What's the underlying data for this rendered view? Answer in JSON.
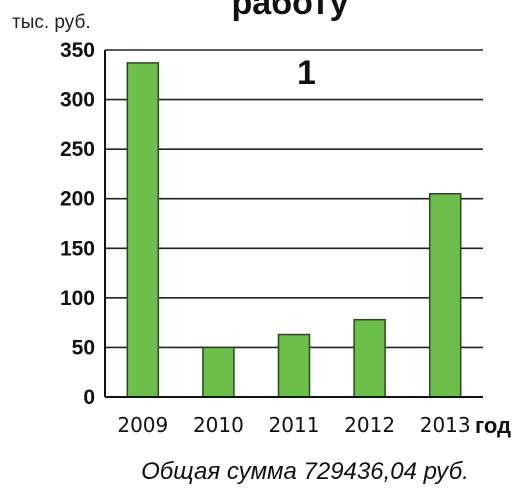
{
  "chart_data": {
    "type": "bar",
    "title": "работу",
    "panel_label": "1",
    "unit_label": "тыс. руб.",
    "xlabel": "год",
    "ylabel": "",
    "categories": [
      "2009",
      "2010",
      "2011",
      "2012",
      "2013"
    ],
    "values": [
      337,
      50,
      63,
      78,
      205
    ],
    "ylim": [
      0,
      350
    ],
    "yticks": [
      0,
      50,
      100,
      150,
      200,
      250,
      300,
      350
    ],
    "grid": true,
    "bar_color": "#6cbf4a",
    "caption": "Общая сумма 729436,04 руб."
  }
}
